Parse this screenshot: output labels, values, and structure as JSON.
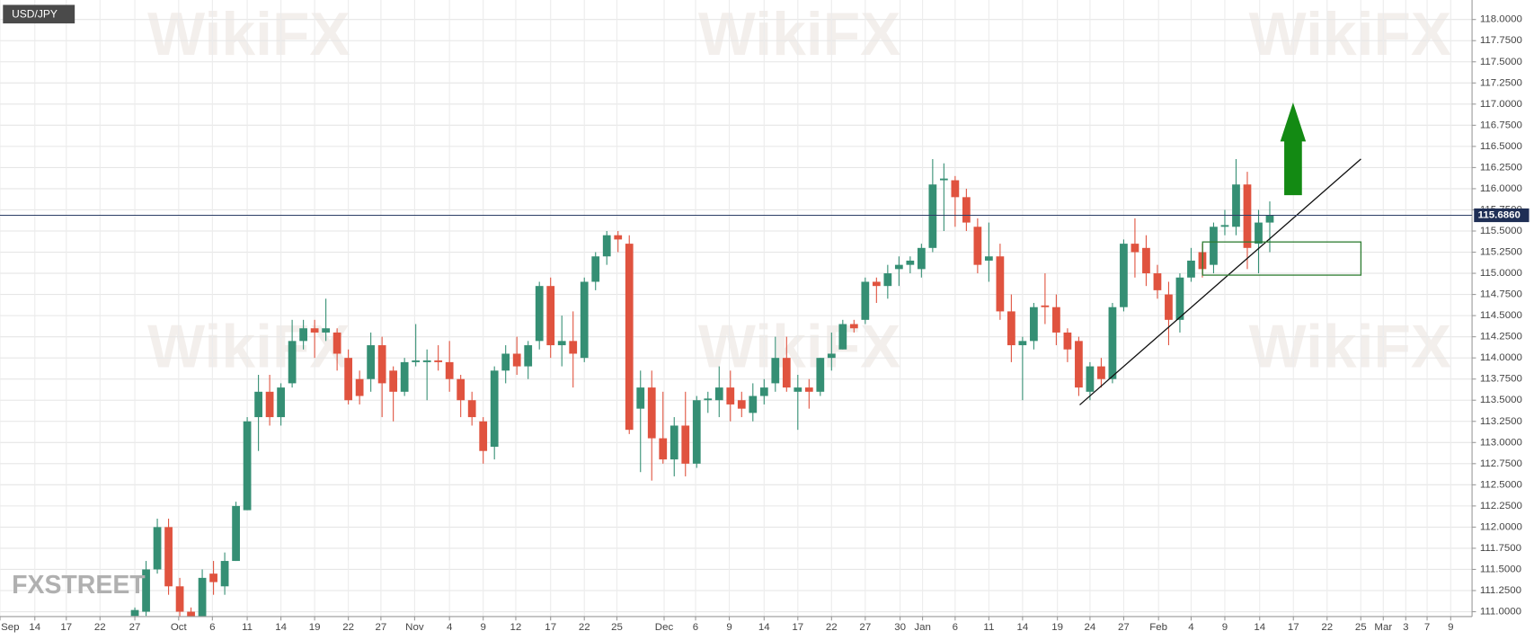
{
  "chart_data": {
    "type": "candlestick",
    "title": "USD/JPY",
    "watermark": "WikiFX",
    "logo": "FXSTREET",
    "up_color": "#358f74",
    "down_color": "#e0533f",
    "grid": true,
    "last_price": {
      "value": 115.686,
      "label": "115.6860"
    },
    "xlim": [
      0,
      131
    ],
    "ylim": [
      111,
      118
    ],
    "xticks": [
      {
        "value": 0,
        "label": "Sep"
      },
      {
        "value": 3.1,
        "label": "14"
      },
      {
        "value": 5.9,
        "label": "17"
      },
      {
        "value": 8.9,
        "label": "22"
      },
      {
        "value": 12.0,
        "label": "27"
      },
      {
        "value": 15.9,
        "label": "Oct"
      },
      {
        "value": 18.9,
        "label": "6"
      },
      {
        "value": 22.0,
        "label": "11"
      },
      {
        "value": 25.0,
        "label": "14"
      },
      {
        "value": 28.0,
        "label": "19"
      },
      {
        "value": 31.0,
        "label": "22"
      },
      {
        "value": 33.9,
        "label": "27"
      },
      {
        "value": 36.9,
        "label": "Nov"
      },
      {
        "value": 40.0,
        "label": "4"
      },
      {
        "value": 43.0,
        "label": "9"
      },
      {
        "value": 45.9,
        "label": "12"
      },
      {
        "value": 49.0,
        "label": "17"
      },
      {
        "value": 52.0,
        "label": "22"
      },
      {
        "value": 54.9,
        "label": "25"
      },
      {
        "value": 59.1,
        "label": "Dec"
      },
      {
        "value": 61.9,
        "label": "6"
      },
      {
        "value": 64.9,
        "label": "9"
      },
      {
        "value": 68.0,
        "label": "14"
      },
      {
        "value": 71.0,
        "label": "17"
      },
      {
        "value": 74.0,
        "label": "22"
      },
      {
        "value": 77.0,
        "label": "27"
      },
      {
        "value": 80.1,
        "label": "30"
      },
      {
        "value": 82.1,
        "label": "Jan"
      },
      {
        "value": 85.0,
        "label": "6"
      },
      {
        "value": 88.0,
        "label": "11"
      },
      {
        "value": 91.0,
        "label": "14"
      },
      {
        "value": 94.1,
        "label": "19"
      },
      {
        "value": 97.0,
        "label": "24"
      },
      {
        "value": 100.0,
        "label": "27"
      },
      {
        "value": 103.1,
        "label": "Feb"
      },
      {
        "value": 106.0,
        "label": "4"
      },
      {
        "value": 109.0,
        "label": "9"
      },
      {
        "value": 112.1,
        "label": "14"
      },
      {
        "value": 115.1,
        "label": "17"
      },
      {
        "value": 118.1,
        "label": "22"
      },
      {
        "value": 121.1,
        "label": "25"
      },
      {
        "value": 123.1,
        "label": "Mar"
      },
      {
        "value": 125.1,
        "label": "3"
      },
      {
        "value": 127.0,
        "label": "7"
      },
      {
        "value": 129.1,
        "label": "9"
      }
    ],
    "yticks": [
      {
        "value": 111,
        "label": "111.0000"
      },
      {
        "value": 111.25,
        "label": "111.2500"
      },
      {
        "value": 111.5,
        "label": "111.5000"
      },
      {
        "value": 111.75,
        "label": "111.7500"
      },
      {
        "value": 112,
        "label": "112.0000"
      },
      {
        "value": 112.25,
        "label": "112.2500"
      },
      {
        "value": 112.5,
        "label": "112.5000"
      },
      {
        "value": 112.75,
        "label": "112.7500"
      },
      {
        "value": 113,
        "label": "113.0000"
      },
      {
        "value": 113.25,
        "label": "113.2500"
      },
      {
        "value": 113.5,
        "label": "113.5000"
      },
      {
        "value": 113.75,
        "label": "113.7500"
      },
      {
        "value": 114,
        "label": "114.0000"
      },
      {
        "value": 114.25,
        "label": "114.2500"
      },
      {
        "value": 114.5,
        "label": "114.5000"
      },
      {
        "value": 114.75,
        "label": "114.7500"
      },
      {
        "value": 115,
        "label": "115.0000"
      },
      {
        "value": 115.25,
        "label": "115.2500"
      },
      {
        "value": 115.5,
        "label": "115.5000"
      },
      {
        "value": 115.75,
        "label": "115.7500"
      },
      {
        "value": 116,
        "label": "116.0000"
      },
      {
        "value": 116.25,
        "label": "116.2500"
      },
      {
        "value": 116.5,
        "label": "116.5000"
      },
      {
        "value": 116.75,
        "label": "116.7500"
      },
      {
        "value": 117,
        "label": "117.0000"
      },
      {
        "value": 117.25,
        "label": "117.2500"
      },
      {
        "value": 117.5,
        "label": "117.5000"
      },
      {
        "value": 117.75,
        "label": "117.7500"
      },
      {
        "value": 118,
        "label": "118.0000"
      }
    ],
    "x": [
      12,
      13,
      14,
      15,
      16,
      17,
      18,
      19,
      20,
      21,
      22,
      23,
      24,
      25,
      26,
      27,
      28,
      29,
      30,
      31,
      32,
      33,
      34,
      35,
      36,
      37,
      38,
      39,
      40,
      41,
      42,
      43,
      44,
      45,
      46,
      47,
      48,
      49,
      50,
      51,
      52,
      53,
      54,
      55,
      56,
      57,
      58,
      59,
      60,
      61,
      62,
      63,
      64,
      65,
      66,
      67,
      68,
      69,
      70,
      71,
      72,
      73,
      74,
      75,
      76,
      77,
      78,
      79,
      80,
      81,
      82,
      83,
      84,
      85,
      86,
      87,
      88,
      89,
      90,
      91,
      92,
      93,
      94,
      95,
      96,
      97,
      98,
      99,
      100,
      101,
      102,
      103,
      104,
      105,
      106,
      107,
      108,
      109,
      110,
      111,
      112,
      113
    ],
    "open": [
      110.95,
      111.0,
      111.5,
      112.0,
      111.3,
      111.0,
      110.8,
      111.45,
      111.3,
      111.6,
      112.2,
      113.3,
      113.6,
      113.3,
      113.7,
      114.2,
      114.35,
      114.3,
      114.3,
      114.0,
      113.75,
      113.75,
      114.15,
      113.85,
      113.6,
      113.95,
      113.95,
      113.97,
      113.95,
      113.75,
      113.5,
      113.25,
      112.95,
      113.85,
      114.05,
      113.9,
      114.2,
      114.85,
      114.15,
      114.2,
      114.0,
      114.9,
      115.2,
      115.45,
      115.35,
      113.4,
      113.65,
      113.05,
      112.8,
      113.2,
      112.75,
      113.5,
      113.5,
      113.65,
      113.5,
      113.35,
      113.55,
      113.7,
      114.0,
      113.6,
      113.65,
      113.6,
      114.0,
      114.1,
      114.4,
      114.45,
      114.9,
      114.85,
      115.05,
      115.1,
      115.05,
      115.3,
      116.1,
      116.1,
      115.9,
      115.55,
      115.15,
      115.2,
      114.55,
      114.15,
      114.2,
      114.62,
      114.6,
      114.3,
      114.2,
      113.6,
      113.9,
      113.75,
      114.6,
      115.35,
      115.3,
      115.0,
      114.75,
      114.45,
      114.95,
      115.25,
      115.1,
      115.55,
      115.55,
      116.05,
      115.35,
      115.6
    ],
    "high": [
      111.05,
      111.6,
      112.1,
      112.1,
      111.4,
      111.05,
      111.5,
      111.6,
      111.7,
      112.3,
      113.3,
      113.8,
      113.8,
      113.7,
      114.45,
      114.45,
      114.45,
      114.7,
      114.35,
      114.1,
      113.85,
      114.3,
      114.25,
      113.9,
      114.0,
      114.4,
      114.1,
      114.15,
      114.2,
      113.8,
      113.6,
      113.3,
      113.9,
      114.15,
      114.25,
      114.2,
      114.9,
      114.95,
      114.5,
      114.55,
      114.95,
      115.25,
      115.5,
      115.5,
      115.45,
      113.85,
      113.85,
      113.6,
      113.3,
      113.6,
      113.55,
      113.6,
      113.9,
      113.85,
      113.6,
      113.7,
      113.75,
      114.25,
      114.25,
      113.8,
      113.75,
      114.0,
      114.3,
      114.45,
      114.45,
      114.95,
      114.95,
      115.1,
      115.2,
      115.2,
      115.35,
      116.35,
      116.3,
      116.15,
      116.0,
      115.65,
      115.6,
      115.35,
      114.75,
      114.25,
      114.65,
      115.0,
      114.75,
      114.35,
      114.25,
      113.95,
      114.0,
      114.65,
      115.4,
      115.65,
      115.45,
      115.1,
      114.9,
      115.0,
      115.3,
      115.35,
      115.6,
      115.75,
      116.35,
      116.2,
      115.75,
      115.85
    ],
    "low": [
      110.9,
      110.95,
      111.45,
      111.2,
      110.8,
      110.6,
      110.7,
      111.2,
      111.2,
      111.6,
      112.2,
      112.9,
      113.2,
      113.2,
      113.65,
      114.1,
      114.0,
      114.2,
      113.85,
      113.45,
      113.45,
      113.6,
      113.3,
      113.25,
      113.55,
      113.9,
      113.5,
      113.85,
      113.6,
      113.3,
      113.2,
      112.75,
      112.8,
      113.7,
      113.8,
      113.75,
      114.1,
      114.0,
      113.9,
      113.65,
      113.95,
      114.8,
      115.1,
      115.25,
      113.1,
      112.65,
      112.55,
      112.75,
      112.6,
      112.6,
      112.7,
      113.35,
      113.3,
      113.25,
      113.3,
      113.25,
      113.45,
      113.6,
      113.6,
      113.15,
      113.4,
      113.55,
      113.85,
      114.1,
      114.3,
      114.4,
      114.65,
      114.7,
      114.85,
      115.0,
      114.95,
      115.25,
      115.5,
      115.55,
      115.5,
      115.0,
      114.9,
      114.45,
      113.95,
      113.5,
      114.1,
      114.4,
      114.15,
      113.95,
      113.55,
      113.5,
      113.65,
      113.7,
      114.55,
      114.95,
      114.85,
      114.7,
      114.15,
      114.3,
      114.9,
      114.95,
      115.0,
      115.45,
      115.45,
      115.05,
      115.0,
      115.25
    ],
    "close": [
      111.02,
      111.5,
      112.0,
      111.3,
      111.0,
      110.7,
      111.4,
      111.35,
      111.6,
      112.25,
      113.25,
      113.6,
      113.3,
      113.65,
      114.2,
      114.35,
      114.3,
      114.35,
      114.05,
      113.5,
      113.55,
      114.15,
      113.7,
      113.6,
      113.95,
      113.97,
      113.97,
      113.95,
      113.75,
      113.5,
      113.3,
      112.9,
      113.85,
      114.05,
      113.9,
      114.15,
      114.85,
      114.15,
      114.2,
      114.05,
      114.9,
      115.2,
      115.45,
      115.4,
      113.15,
      113.65,
      113.05,
      112.8,
      113.2,
      112.75,
      113.5,
      113.52,
      113.65,
      113.45,
      113.4,
      113.55,
      113.65,
      114.0,
      113.65,
      113.65,
      113.6,
      114.0,
      114.05,
      114.4,
      114.35,
      114.9,
      114.85,
      115.0,
      115.1,
      115.15,
      115.3,
      116.05,
      116.12,
      115.9,
      115.6,
      115.1,
      115.2,
      114.55,
      114.15,
      114.2,
      114.6,
      114.6,
      114.3,
      114.1,
      113.65,
      113.9,
      113.75,
      114.6,
      115.35,
      115.25,
      115.0,
      114.8,
      114.45,
      114.95,
      115.15,
      115.05,
      115.55,
      115.57,
      116.05,
      115.3,
      115.6,
      115.686
    ]
  }
}
